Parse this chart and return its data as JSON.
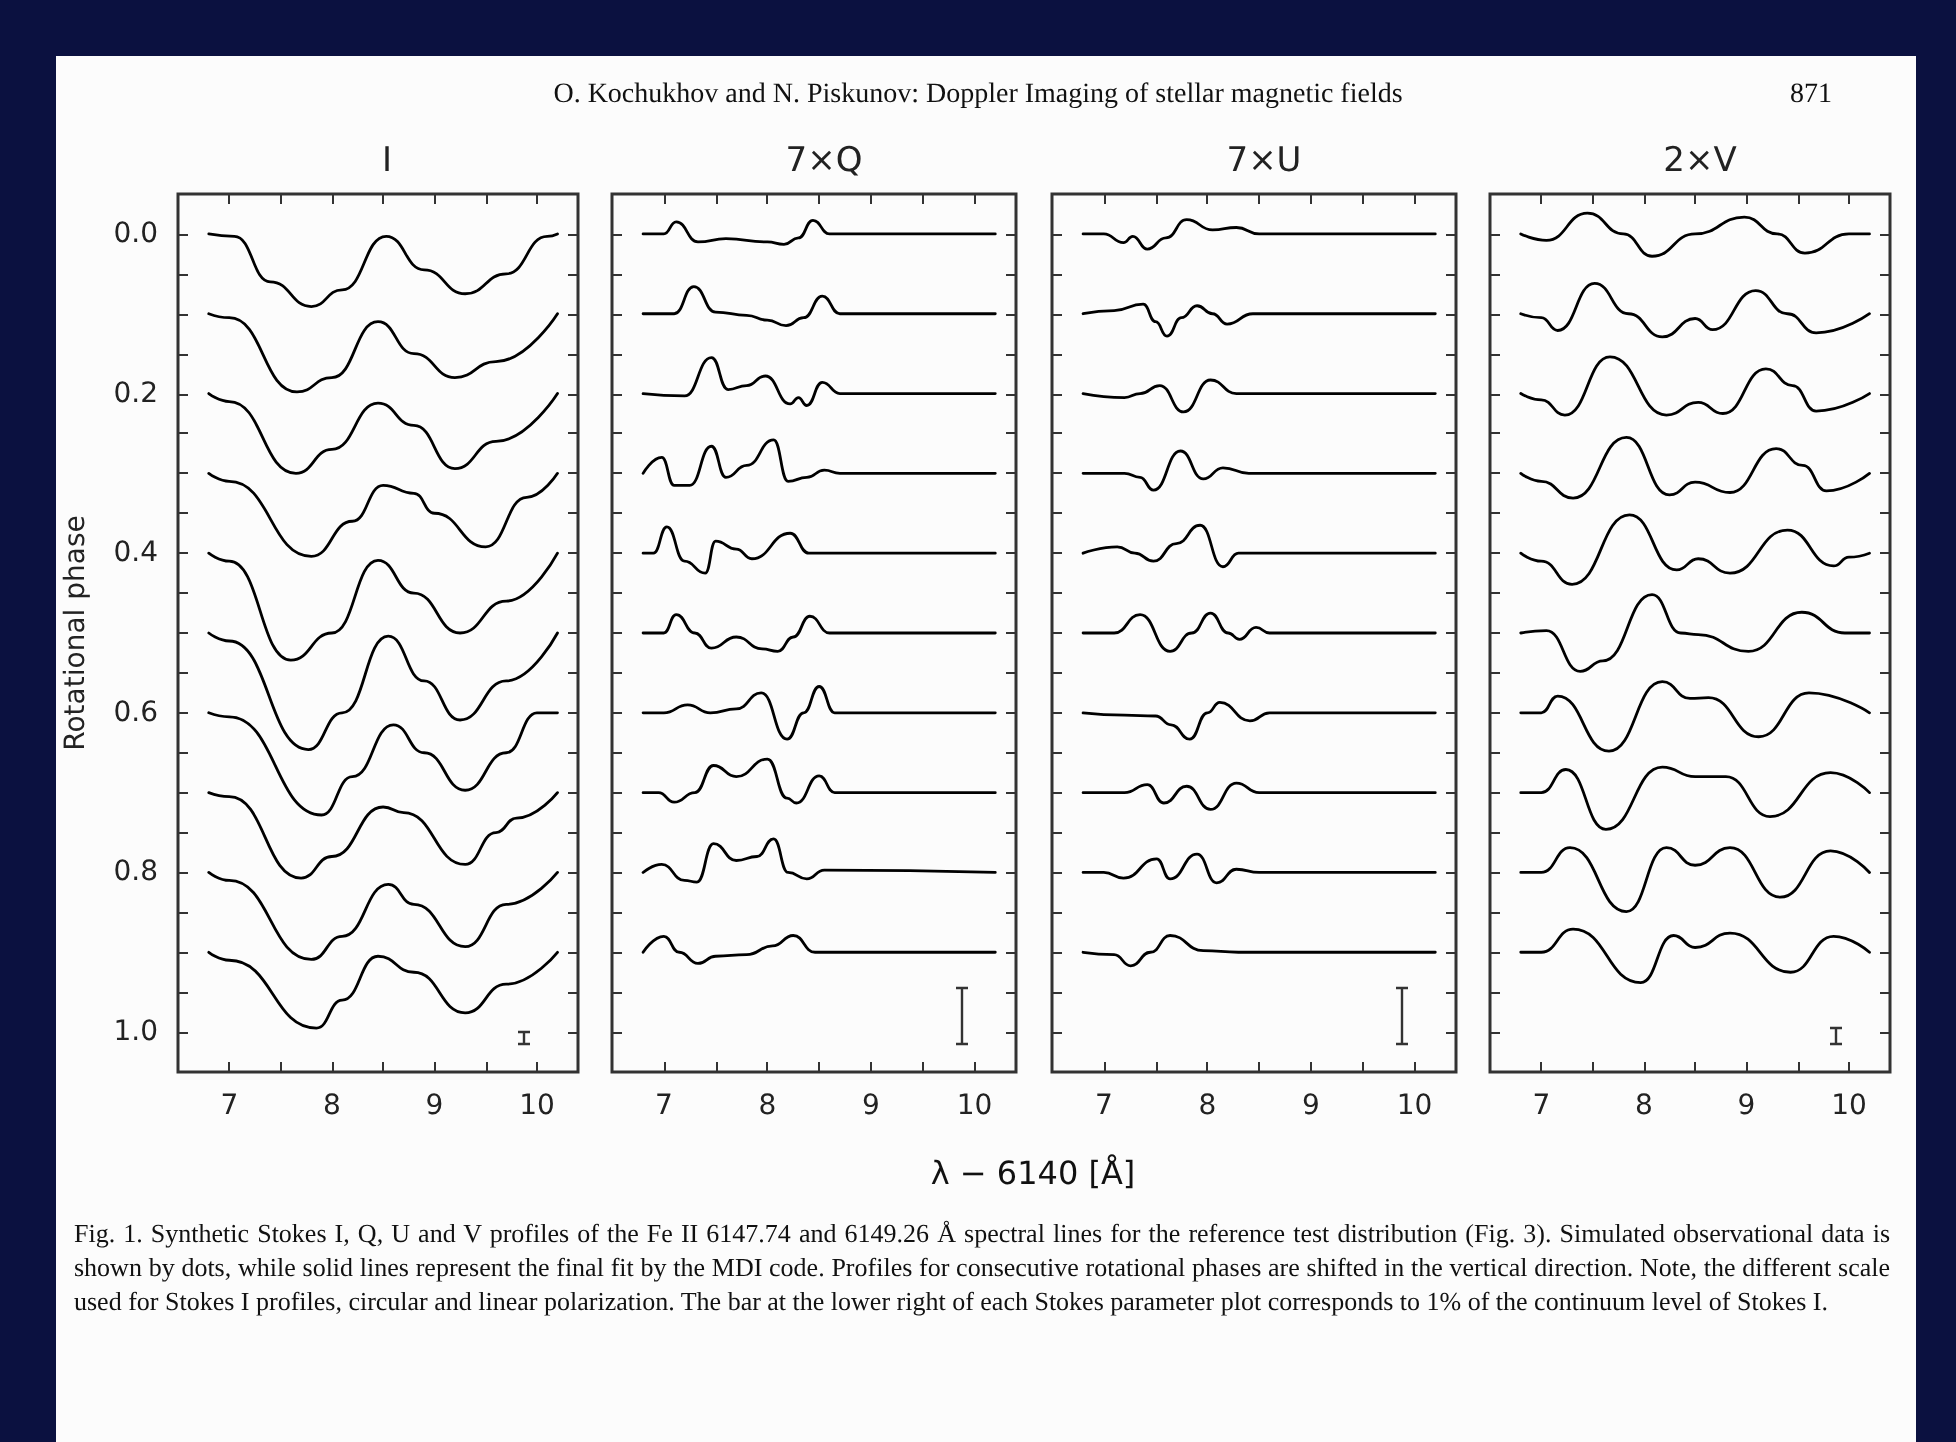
{
  "chart_data": [
    {
      "type": "line",
      "title": "I",
      "ylabel": "Rotational phase",
      "xlim": [
        6.5,
        10.4
      ],
      "ylim": [
        1.05,
        -0.05
      ],
      "xticks": [
        7,
        {
          "value": 7.5,
          "label": null
        },
        8,
        {
          "value": 8.5,
          "label": null
        },
        9,
        {
          "value": 9.5,
          "label": null
        },
        10
      ],
      "yticks": [
        {
          "value": 0,
          "label": "0.0"
        },
        {
          "value": 0.05,
          "label": null
        },
        {
          "value": 0.1,
          "label": null
        },
        {
          "value": 0.15,
          "label": null
        },
        {
          "value": 0.2,
          "label": "0.2"
        },
        {
          "value": 0.25,
          "label": null
        },
        {
          "value": 0.3,
          "label": null
        },
        {
          "value": 0.35,
          "label": null
        },
        {
          "value": 0.4,
          "label": "0.4"
        },
        {
          "value": 0.45,
          "label": null
        },
        {
          "value": 0.5,
          "label": null
        },
        {
          "value": 0.55,
          "label": null
        },
        {
          "value": 0.6,
          "label": "0.6"
        },
        {
          "value": 0.65,
          "label": null
        },
        {
          "value": 0.7,
          "label": null
        },
        {
          "value": 0.75,
          "label": null
        },
        {
          "value": 0.8,
          "label": "0.8"
        },
        {
          "value": 0.85,
          "label": null
        },
        {
          "value": 0.9,
          "label": null
        },
        {
          "value": 0.95,
          "label": null
        },
        {
          "value": 1,
          "label": "1.0"
        }
      ],
      "annotations": [
        "O. Kochukhov and N. Piskunov: Doppler Imaging of stellar magnetic fields",
        "871",
        "Fig. 1. Synthetic Stokes I, Q, U and V profiles of the Fe II 6147.74 and 6149.26 Å spectral lines for the reference test distribution (Fig. 3). Simulated observational data is shown by dots, while solid lines represent the final fit by the MDI code. Profiles for consecutive rotational phases are shifted in the vertical direction. Note, the different scale used for Stokes I profiles, circular and linear polarization. The bar at the lower right of each Stokes parameter plot corresponds to 1% of the continuum level of Stokes I."
      ],
      "series": [
        {
          "color": "#000000",
          "x": [
            6.8,
            7.05,
            7.4,
            7.8,
            8.1,
            8.53,
            8.9,
            9.3,
            9.7,
            10.1,
            10.2
          ],
          "values": [
            0,
            0.003,
            0.06,
            0.091,
            0.07,
            0.003,
            0.045,
            0.075,
            0.05,
            0.003,
            0
          ]
        },
        {
          "color": "#000000",
          "x": [
            6.8,
            7.0,
            7.66,
            8.0,
            8.45,
            8.8,
            9.2,
            9.6,
            10.2
          ],
          "values": [
            0.1,
            0.105,
            0.198,
            0.18,
            0.11,
            0.15,
            0.18,
            0.16,
            0.1
          ]
        },
        {
          "color": "#000000",
          "x": [
            6.8,
            7.0,
            7.65,
            8.0,
            8.45,
            8.8,
            9.2,
            9.6,
            10.2
          ],
          "values": [
            0.2,
            0.21,
            0.3,
            0.27,
            0.212,
            0.24,
            0.294,
            0.26,
            0.2
          ]
        },
        {
          "color": "#000000",
          "x": [
            6.8,
            7.0,
            7.8,
            8.2,
            8.5,
            8.8,
            9.0,
            9.5,
            9.9,
            10.2
          ],
          "values": [
            0.3,
            0.31,
            0.404,
            0.36,
            0.315,
            0.325,
            0.35,
            0.392,
            0.33,
            0.3
          ]
        },
        {
          "color": "#000000",
          "x": [
            6.8,
            7.0,
            7.6,
            8.0,
            8.45,
            8.8,
            9.25,
            9.7,
            10.2
          ],
          "values": [
            0.4,
            0.41,
            0.534,
            0.5,
            0.409,
            0.45,
            0.5,
            0.46,
            0.4
          ]
        },
        {
          "color": "#000000",
          "x": [
            6.8,
            7.0,
            7.77,
            8.1,
            8.55,
            8.9,
            9.25,
            9.7,
            10.2
          ],
          "values": [
            0.5,
            0.51,
            0.646,
            0.6,
            0.504,
            0.56,
            0.609,
            0.56,
            0.5
          ]
        },
        {
          "color": "#000000",
          "x": [
            6.8,
            7.0,
            7.9,
            8.2,
            8.6,
            8.9,
            9.3,
            9.7,
            10.0,
            10.2
          ],
          "values": [
            0.6,
            0.605,
            0.728,
            0.68,
            0.615,
            0.65,
            0.697,
            0.65,
            0.6,
            0.6
          ]
        },
        {
          "color": "#000000",
          "x": [
            6.8,
            7.0,
            7.7,
            8.0,
            8.5,
            8.7,
            9.3,
            9.6,
            9.8,
            10.2
          ],
          "values": [
            0.7,
            0.705,
            0.807,
            0.78,
            0.718,
            0.725,
            0.79,
            0.75,
            0.732,
            0.7
          ]
        },
        {
          "color": "#000000",
          "x": [
            6.8,
            7.0,
            7.8,
            8.1,
            8.55,
            8.8,
            9.3,
            9.7,
            10.2
          ],
          "values": [
            0.8,
            0.81,
            0.909,
            0.88,
            0.815,
            0.84,
            0.893,
            0.84,
            0.8
          ]
        },
        {
          "color": "#000000",
          "x": [
            6.8,
            7.0,
            7.85,
            8.1,
            8.45,
            8.8,
            9.3,
            9.7,
            10.2
          ],
          "values": [
            0.9,
            0.91,
            0.995,
            0.96,
            0.905,
            0.925,
            0.976,
            0.94,
            0.9
          ]
        }
      ]
    },
    {
      "type": "line",
      "title": "7×Q",
      "xlabel": "λ − 6140 [Å]",
      "tick_labels": "x",
      "xlim": [
        6.5,
        10.4
      ],
      "ylim": [
        1.05,
        -0.05
      ],
      "xticks": [
        7,
        {
          "value": 7.5,
          "label": null
        },
        8,
        {
          "value": 8.5,
          "label": null
        },
        9,
        {
          "value": 9.5,
          "label": null
        },
        10
      ],
      "yticks": [
        {
          "value": 0,
          "label": null
        },
        {
          "value": 0.05,
          "label": null
        },
        {
          "value": 0.1,
          "label": null
        },
        {
          "value": 0.15,
          "label": null
        },
        {
          "value": 0.2,
          "label": null
        },
        {
          "value": 0.25,
          "label": null
        },
        {
          "value": 0.3,
          "label": null
        },
        {
          "value": 0.35,
          "label": null
        },
        {
          "value": 0.4,
          "label": null
        },
        {
          "value": 0.45,
          "label": null
        },
        {
          "value": 0.5,
          "label": null
        },
        {
          "value": 0.55,
          "label": null
        },
        {
          "value": 0.6,
          "label": null
        },
        {
          "value": 0.65,
          "label": null
        },
        {
          "value": 0.7,
          "label": null
        },
        {
          "value": 0.75,
          "label": null
        },
        {
          "value": 0.8,
          "label": null
        },
        {
          "value": 0.85,
          "label": null
        },
        {
          "value": 0.9,
          "label": null
        },
        {
          "value": 0.95,
          "label": null
        },
        {
          "value": 1,
          "label": null
        }
      ],
      "series": [
        {
          "color": "#000000",
          "x": [
            6.8,
            7.0,
            7.12,
            7.33,
            7.6,
            8.0,
            8.16,
            8.3,
            8.44,
            8.6,
            10.2
          ],
          "values": [
            0,
            0,
            -0.015,
            0.01,
            0.006,
            0.01,
            0.013,
            0.005,
            -0.017,
            0,
            0
          ]
        },
        {
          "color": "#000000",
          "x": [
            6.8,
            7.1,
            7.29,
            7.5,
            7.8,
            8.0,
            8.18,
            8.35,
            8.53,
            8.7,
            10.2
          ],
          "values": [
            0.1,
            0.1,
            0.066,
            0.098,
            0.102,
            0.108,
            0.115,
            0.105,
            0.078,
            0.1,
            0.1
          ]
        },
        {
          "color": "#000000",
          "x": [
            6.8,
            7.2,
            7.46,
            7.62,
            7.8,
            7.98,
            8.22,
            8.3,
            8.38,
            8.53,
            8.7,
            10.2
          ],
          "values": [
            0.2,
            0.203,
            0.155,
            0.195,
            0.19,
            0.178,
            0.213,
            0.205,
            0.215,
            0.186,
            0.2,
            0.2
          ]
        },
        {
          "color": "#000000",
          "x": [
            6.8,
            6.98,
            7.1,
            7.25,
            7.46,
            7.6,
            7.8,
            8.06,
            8.2,
            8.38,
            8.55,
            8.7,
            10.2
          ],
          "values": [
            0.3,
            0.28,
            0.315,
            0.315,
            0.266,
            0.305,
            0.29,
            0.258,
            0.31,
            0.305,
            0.296,
            0.3,
            0.3
          ]
        },
        {
          "color": "#000000",
          "x": [
            6.8,
            6.9,
            7.03,
            7.2,
            7.4,
            7.5,
            7.7,
            7.85,
            8.22,
            8.4,
            10.2
          ],
          "values": [
            0.4,
            0.4,
            0.367,
            0.41,
            0.425,
            0.385,
            0.395,
            0.407,
            0.375,
            0.4,
            0.4
          ]
        },
        {
          "color": "#000000",
          "x": [
            6.8,
            7.0,
            7.12,
            7.3,
            7.46,
            7.7,
            7.95,
            8.1,
            8.25,
            8.41,
            8.6,
            10.2
          ],
          "values": [
            0.5,
            0.5,
            0.477,
            0.5,
            0.519,
            0.505,
            0.52,
            0.523,
            0.505,
            0.479,
            0.5,
            0.5
          ]
        },
        {
          "color": "#000000",
          "x": [
            6.8,
            7.0,
            7.23,
            7.45,
            7.7,
            7.94,
            8.19,
            8.35,
            8.5,
            8.65,
            10.2
          ],
          "values": [
            0.6,
            0.6,
            0.59,
            0.6,
            0.595,
            0.575,
            0.633,
            0.6,
            0.567,
            0.6,
            0.6
          ]
        },
        {
          "color": "#000000",
          "x": [
            6.8,
            6.95,
            7.1,
            7.3,
            7.48,
            7.7,
            8.0,
            8.19,
            8.28,
            8.5,
            8.65,
            10.2
          ],
          "values": [
            0.7,
            0.7,
            0.712,
            0.7,
            0.666,
            0.68,
            0.658,
            0.707,
            0.713,
            0.679,
            0.7,
            0.7
          ]
        },
        {
          "color": "#000000",
          "x": [
            6.8,
            6.98,
            7.2,
            7.32,
            7.48,
            7.7,
            7.9,
            8.06,
            8.2,
            8.38,
            8.55,
            10.2
          ],
          "values": [
            0.8,
            0.79,
            0.81,
            0.812,
            0.764,
            0.785,
            0.78,
            0.758,
            0.8,
            0.808,
            0.797,
            0.8
          ]
        },
        {
          "color": "#000000",
          "x": [
            6.8,
            7.0,
            7.15,
            7.33,
            7.5,
            7.8,
            8.05,
            8.25,
            8.46,
            10.2
          ],
          "values": [
            0.9,
            0.88,
            0.9,
            0.914,
            0.905,
            0.903,
            0.892,
            0.879,
            0.9,
            0.9
          ]
        }
      ]
    },
    {
      "type": "line",
      "title": "7×U",
      "tick_labels": "x",
      "xlim": [
        6.5,
        10.4
      ],
      "ylim": [
        1.05,
        -0.05
      ],
      "xticks": [
        7,
        {
          "value": 7.5,
          "label": null
        },
        8,
        {
          "value": 8.5,
          "label": null
        },
        9,
        {
          "value": 9.5,
          "label": null
        },
        10
      ],
      "yticks": [
        {
          "value": 0,
          "label": null
        },
        {
          "value": 0.05,
          "label": null
        },
        {
          "value": 0.1,
          "label": null
        },
        {
          "value": 0.15,
          "label": null
        },
        {
          "value": 0.2,
          "label": null
        },
        {
          "value": 0.25,
          "label": null
        },
        {
          "value": 0.3,
          "label": null
        },
        {
          "value": 0.35,
          "label": null
        },
        {
          "value": 0.4,
          "label": null
        },
        {
          "value": 0.45,
          "label": null
        },
        {
          "value": 0.5,
          "label": null
        },
        {
          "value": 0.55,
          "label": null
        },
        {
          "value": 0.6,
          "label": null
        },
        {
          "value": 0.65,
          "label": null
        },
        {
          "value": 0.7,
          "label": null
        },
        {
          "value": 0.75,
          "label": null
        },
        {
          "value": 0.8,
          "label": null
        },
        {
          "value": 0.85,
          "label": null
        },
        {
          "value": 0.9,
          "label": null
        },
        {
          "value": 0.95,
          "label": null
        },
        {
          "value": 1,
          "label": null
        }
      ],
      "series": [
        {
          "color": "#000000",
          "x": [
            6.8,
            7.0,
            7.19,
            7.28,
            7.42,
            7.6,
            7.8,
            8.05,
            8.28,
            8.5,
            10.2
          ],
          "values": [
            0,
            0,
            0.011,
            0.003,
            0.019,
            0.005,
            -0.018,
            -0.005,
            -0.008,
            0,
            0
          ]
        },
        {
          "color": "#000000",
          "x": [
            6.8,
            7.1,
            7.38,
            7.5,
            7.61,
            7.75,
            7.9,
            8.05,
            8.19,
            8.44,
            10.2
          ],
          "values": [
            0.1,
            0.096,
            0.088,
            0.11,
            0.128,
            0.105,
            0.09,
            0.1,
            0.113,
            0.1,
            0.1
          ]
        },
        {
          "color": "#000000",
          "x": [
            6.8,
            7.2,
            7.35,
            7.54,
            7.77,
            8.03,
            8.28,
            10.2
          ],
          "values": [
            0.2,
            0.205,
            0.2,
            0.19,
            0.223,
            0.183,
            0.2,
            0.2
          ]
        },
        {
          "color": "#000000",
          "x": [
            6.8,
            7.2,
            7.35,
            7.48,
            7.74,
            7.96,
            8.15,
            8.4,
            10.2
          ],
          "values": [
            0.3,
            0.3,
            0.305,
            0.321,
            0.272,
            0.307,
            0.293,
            0.3,
            0.3
          ]
        },
        {
          "color": "#000000",
          "x": [
            6.8,
            7.13,
            7.3,
            7.48,
            7.7,
            7.93,
            8.15,
            8.3,
            10.2
          ],
          "values": [
            0.4,
            0.392,
            0.4,
            0.41,
            0.388,
            0.365,
            0.417,
            0.4,
            0.4
          ]
        },
        {
          "color": "#000000",
          "x": [
            6.8,
            7.1,
            7.35,
            7.64,
            7.85,
            8.03,
            8.2,
            8.31,
            8.47,
            8.6,
            10.2
          ],
          "values": [
            0.5,
            0.5,
            0.477,
            0.523,
            0.5,
            0.475,
            0.5,
            0.508,
            0.493,
            0.5,
            0.5
          ]
        },
        {
          "color": "#000000",
          "x": [
            6.8,
            7.2,
            7.5,
            7.65,
            7.83,
            8.0,
            8.12,
            8.41,
            8.6,
            10.2
          ],
          "values": [
            0.6,
            0.603,
            0.604,
            0.615,
            0.633,
            0.6,
            0.587,
            0.61,
            0.6,
            0.6
          ]
        },
        {
          "color": "#000000",
          "x": [
            6.8,
            7.2,
            7.42,
            7.58,
            7.8,
            8.03,
            8.28,
            8.5,
            10.2
          ],
          "values": [
            0.7,
            0.7,
            0.69,
            0.713,
            0.692,
            0.721,
            0.688,
            0.7,
            0.7
          ]
        },
        {
          "color": "#000000",
          "x": [
            6.8,
            7.0,
            7.19,
            7.51,
            7.64,
            7.9,
            8.09,
            8.28,
            8.5,
            10.2
          ],
          "values": [
            0.8,
            0.8,
            0.807,
            0.783,
            0.808,
            0.777,
            0.813,
            0.796,
            0.8,
            0.8
          ]
        },
        {
          "color": "#000000",
          "x": [
            6.8,
            7.1,
            7.26,
            7.45,
            7.64,
            7.96,
            8.3,
            10.2
          ],
          "values": [
            0.9,
            0.903,
            0.917,
            0.9,
            0.879,
            0.898,
            0.9,
            0.9
          ]
        }
      ]
    },
    {
      "type": "line",
      "title": "2×V",
      "tick_labels": "x",
      "xlim": [
        6.5,
        10.4
      ],
      "ylim": [
        1.05,
        -0.05
      ],
      "xticks": [
        7,
        {
          "value": 7.5,
          "label": null
        },
        8,
        {
          "value": 8.5,
          "label": null
        },
        9,
        {
          "value": 9.5,
          "label": null
        },
        10
      ],
      "yticks": [
        {
          "value": 0,
          "label": null
        },
        {
          "value": 0.05,
          "label": null
        },
        {
          "value": 0.1,
          "label": null
        },
        {
          "value": 0.15,
          "label": null
        },
        {
          "value": 0.2,
          "label": null
        },
        {
          "value": 0.25,
          "label": null
        },
        {
          "value": 0.3,
          "label": null
        },
        {
          "value": 0.35,
          "label": null
        },
        {
          "value": 0.4,
          "label": null
        },
        {
          "value": 0.45,
          "label": null
        },
        {
          "value": 0.5,
          "label": null
        },
        {
          "value": 0.55,
          "label": null
        },
        {
          "value": 0.6,
          "label": null
        },
        {
          "value": 0.65,
          "label": null
        },
        {
          "value": 0.7,
          "label": null
        },
        {
          "value": 0.75,
          "label": null
        },
        {
          "value": 0.8,
          "label": null
        },
        {
          "value": 0.85,
          "label": null
        },
        {
          "value": 0.9,
          "label": null
        },
        {
          "value": 0.95,
          "label": null
        },
        {
          "value": 1,
          "label": null
        }
      ],
      "series": [
        {
          "color": "#000000",
          "x": [
            6.8,
            7.05,
            7.45,
            7.8,
            8.08,
            8.5,
            8.98,
            9.3,
            9.57,
            10.0,
            10.2
          ],
          "values": [
            0,
            0.008,
            -0.026,
            0,
            0.028,
            0,
            -0.021,
            0,
            0.024,
            0,
            0
          ]
        },
        {
          "color": "#000000",
          "x": [
            6.8,
            7.0,
            7.16,
            7.52,
            7.85,
            8.18,
            8.5,
            8.67,
            9.09,
            9.4,
            9.68,
            10.2
          ],
          "values": [
            0.1,
            0.105,
            0.121,
            0.062,
            0.1,
            0.129,
            0.106,
            0.12,
            0.071,
            0.1,
            0.124,
            0.1
          ]
        },
        {
          "color": "#000000",
          "x": [
            6.8,
            7.0,
            7.23,
            7.67,
            8.22,
            8.53,
            8.77,
            9.19,
            9.45,
            9.68,
            10.2
          ],
          "values": [
            0.2,
            0.208,
            0.227,
            0.154,
            0.227,
            0.211,
            0.225,
            0.169,
            0.19,
            0.222,
            0.2
          ]
        },
        {
          "color": "#000000",
          "x": [
            6.8,
            7.0,
            7.31,
            7.83,
            8.25,
            8.5,
            8.84,
            9.29,
            9.55,
            9.78,
            10.2
          ],
          "values": [
            0.3,
            0.31,
            0.331,
            0.255,
            0.327,
            0.311,
            0.324,
            0.269,
            0.29,
            0.322,
            0.3
          ]
        },
        {
          "color": "#000000",
          "x": [
            6.8,
            7.0,
            7.3,
            7.86,
            8.32,
            8.53,
            8.84,
            9.4,
            9.85,
            10.0,
            10.2
          ],
          "values": [
            0.4,
            0.41,
            0.439,
            0.352,
            0.421,
            0.407,
            0.425,
            0.371,
            0.416,
            0.405,
            0.4
          ]
        },
        {
          "color": "#000000",
          "x": [
            6.8,
            7.05,
            7.38,
            7.6,
            8.08,
            8.36,
            8.53,
            9.02,
            9.54,
            9.96,
            10.2
          ],
          "values": [
            0.5,
            0.497,
            0.548,
            0.535,
            0.452,
            0.5,
            0.502,
            0.523,
            0.474,
            0.5,
            0.5
          ]
        },
        {
          "color": "#000000",
          "x": [
            6.8,
            7.0,
            7.16,
            7.66,
            8.18,
            8.45,
            8.63,
            9.12,
            9.61,
            10.2
          ],
          "values": [
            0.6,
            0.6,
            0.579,
            0.648,
            0.561,
            0.582,
            0.581,
            0.63,
            0.575,
            0.6
          ]
        },
        {
          "color": "#000000",
          "x": [
            6.8,
            7.0,
            7.24,
            7.63,
            8.18,
            8.5,
            8.8,
            9.23,
            9.82,
            10.2
          ],
          "values": [
            0.7,
            0.7,
            0.671,
            0.746,
            0.668,
            0.68,
            0.68,
            0.73,
            0.675,
            0.7
          ]
        },
        {
          "color": "#000000",
          "x": [
            6.8,
            7.0,
            7.28,
            7.83,
            8.22,
            8.5,
            8.84,
            9.33,
            9.82,
            10.2
          ],
          "values": [
            0.8,
            0.8,
            0.769,
            0.849,
            0.769,
            0.791,
            0.769,
            0.831,
            0.773,
            0.8
          ]
        },
        {
          "color": "#000000",
          "x": [
            6.8,
            7.0,
            7.31,
            7.97,
            8.29,
            8.5,
            8.84,
            9.43,
            9.85,
            10.2
          ],
          "values": [
            0.9,
            0.9,
            0.871,
            0.938,
            0.879,
            0.894,
            0.876,
            0.925,
            0.88,
            0.9
          ]
        }
      ]
    }
  ]
}
